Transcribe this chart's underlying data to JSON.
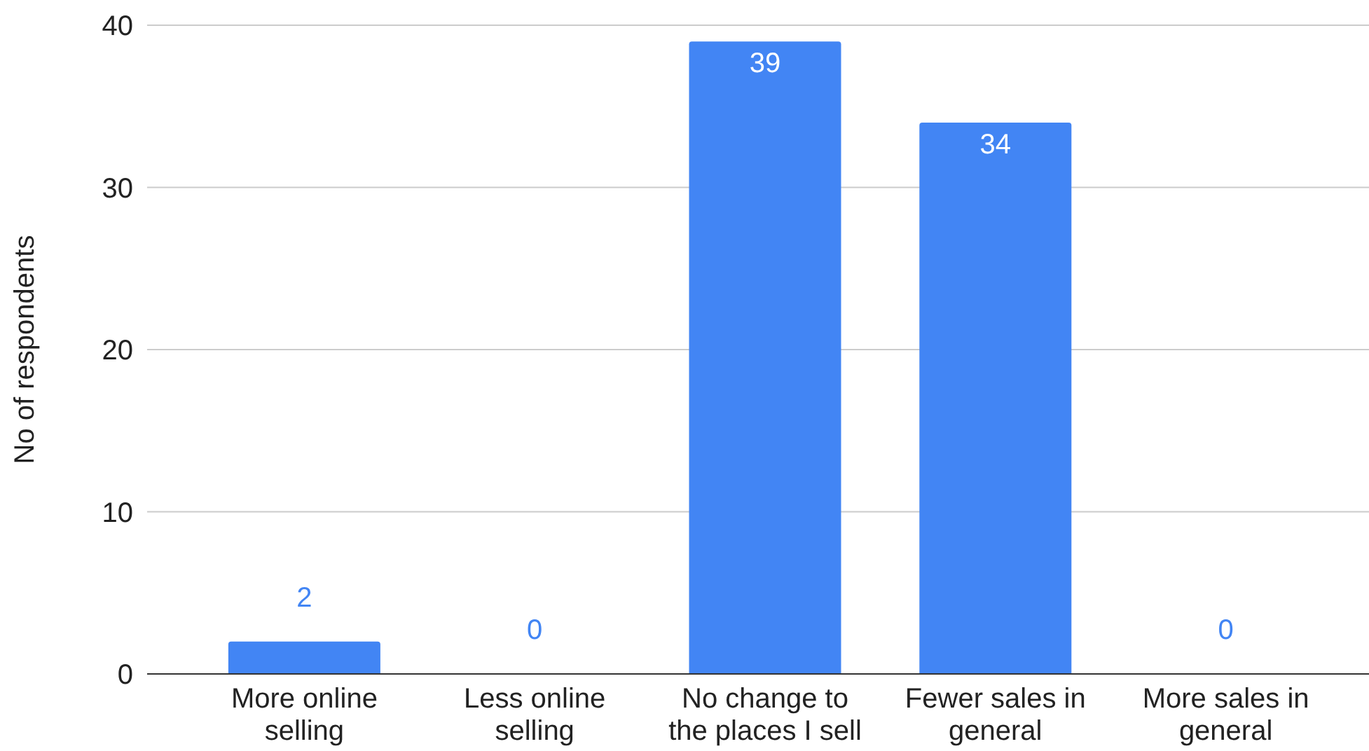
{
  "chart_data": {
    "type": "bar",
    "ylabel": "No of respondents",
    "categories": [
      "More online selling",
      "Less online selling",
      "No change to the places I sell",
      "Fewer sales in general",
      "More sales in general"
    ],
    "values": [
      2,
      0,
      39,
      34,
      0
    ],
    "color": "#4285f4",
    "ylim": [
      0,
      40
    ],
    "yticks": [
      0,
      10,
      20,
      30,
      40
    ],
    "grid": "y",
    "data_labels": true
  }
}
